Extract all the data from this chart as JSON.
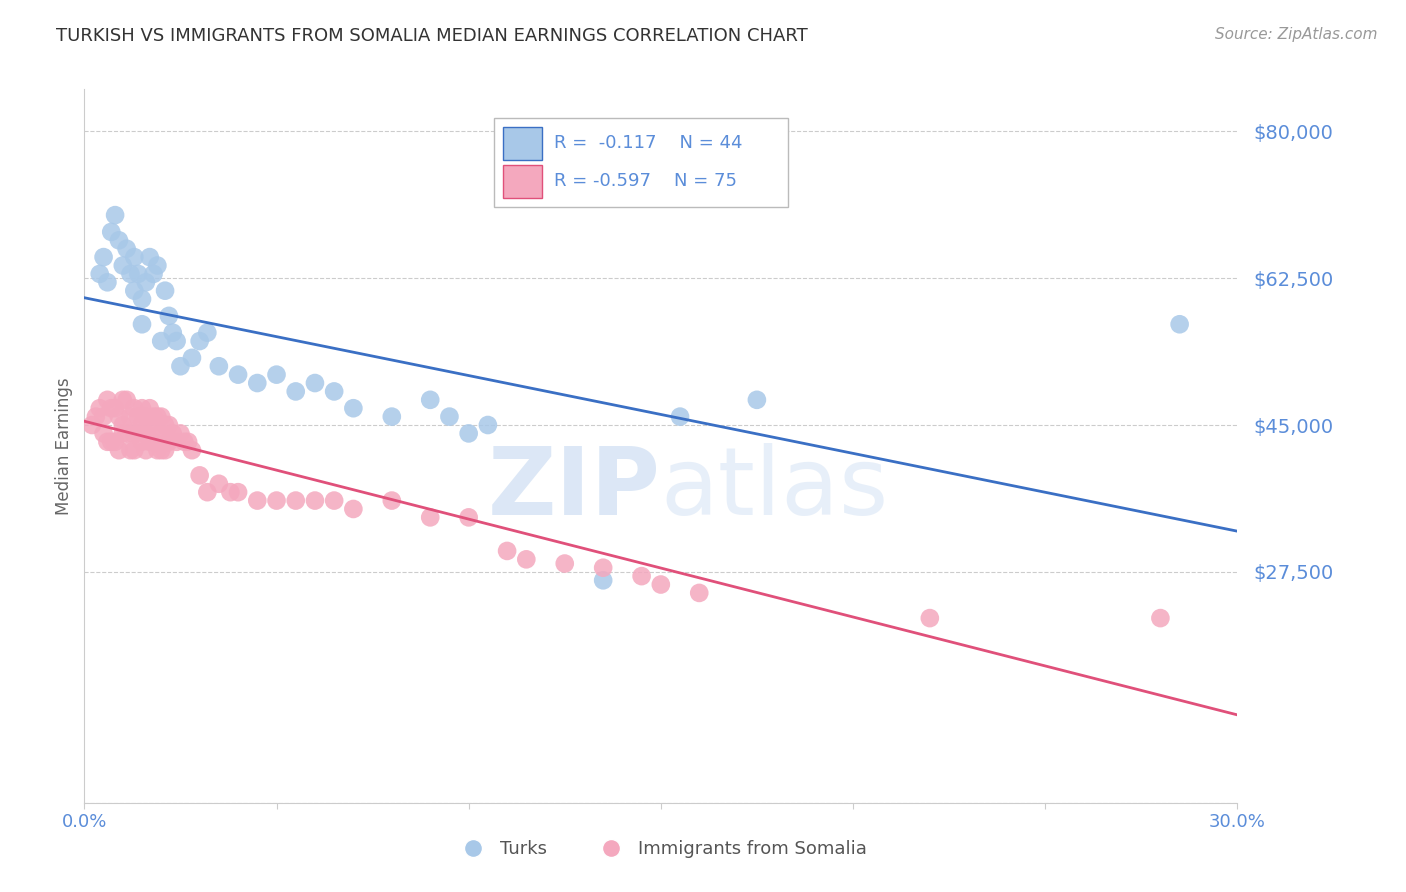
{
  "title": "TURKISH VS IMMIGRANTS FROM SOMALIA MEDIAN EARNINGS CORRELATION CHART",
  "source": "Source: ZipAtlas.com",
  "ylabel": "Median Earnings",
  "watermark": "ZIPatlas",
  "ylim": [
    0,
    85000
  ],
  "xlim": [
    0,
    0.3
  ],
  "yticks": [
    0,
    27500,
    45000,
    62500,
    80000
  ],
  "ytick_labels": [
    "",
    "$27,500",
    "$45,000",
    "$62,500",
    "$80,000"
  ],
  "xticks": [
    0.0,
    0.05,
    0.1,
    0.15,
    0.2,
    0.25,
    0.3
  ],
  "blue_label": "Turks",
  "pink_label": "Immigrants from Somalia",
  "legend_blue_r": "R =  -0.117",
  "legend_blue_n": "N = 44",
  "legend_pink_r": "R = -0.597",
  "legend_pink_n": "N = 75",
  "blue_color": "#a8c8e8",
  "pink_color": "#f4a8be",
  "blue_line_color": "#3a6fc4",
  "pink_line_color": "#e0507a",
  "axis_label_color": "#5b8dd9",
  "grid_color": "#cccccc",
  "title_color": "#333333",
  "background_color": "#ffffff",
  "blue_x": [
    0.004,
    0.005,
    0.006,
    0.007,
    0.008,
    0.009,
    0.01,
    0.011,
    0.012,
    0.013,
    0.013,
    0.014,
    0.015,
    0.015,
    0.016,
    0.017,
    0.018,
    0.019,
    0.02,
    0.021,
    0.022,
    0.023,
    0.024,
    0.025,
    0.028,
    0.03,
    0.032,
    0.035,
    0.04,
    0.045,
    0.05,
    0.055,
    0.06,
    0.065,
    0.07,
    0.08,
    0.09,
    0.095,
    0.1,
    0.105,
    0.135,
    0.155,
    0.175,
    0.285
  ],
  "blue_y": [
    63000,
    65000,
    62000,
    68000,
    70000,
    67000,
    64000,
    66000,
    63000,
    65000,
    61000,
    63000,
    57000,
    60000,
    62000,
    65000,
    63000,
    64000,
    55000,
    61000,
    58000,
    56000,
    55000,
    52000,
    53000,
    55000,
    56000,
    52000,
    51000,
    50000,
    51000,
    49000,
    50000,
    49000,
    47000,
    46000,
    48000,
    46000,
    44000,
    45000,
    26500,
    46000,
    48000,
    57000
  ],
  "pink_x": [
    0.002,
    0.003,
    0.004,
    0.005,
    0.005,
    0.006,
    0.006,
    0.007,
    0.007,
    0.008,
    0.008,
    0.009,
    0.009,
    0.01,
    0.01,
    0.01,
    0.011,
    0.011,
    0.012,
    0.012,
    0.013,
    0.013,
    0.013,
    0.014,
    0.014,
    0.015,
    0.015,
    0.015,
    0.016,
    0.016,
    0.016,
    0.017,
    0.017,
    0.017,
    0.018,
    0.018,
    0.019,
    0.019,
    0.019,
    0.02,
    0.02,
    0.02,
    0.021,
    0.021,
    0.022,
    0.022,
    0.023,
    0.024,
    0.025,
    0.026,
    0.027,
    0.028,
    0.03,
    0.032,
    0.035,
    0.038,
    0.04,
    0.045,
    0.05,
    0.055,
    0.06,
    0.065,
    0.07,
    0.08,
    0.09,
    0.1,
    0.11,
    0.115,
    0.125,
    0.135,
    0.145,
    0.15,
    0.16,
    0.22,
    0.28
  ],
  "pink_y": [
    45000,
    46000,
    47000,
    46000,
    44000,
    48000,
    43000,
    47000,
    43000,
    47000,
    43000,
    46000,
    42000,
    48000,
    45000,
    44000,
    48000,
    44000,
    46000,
    42000,
    47000,
    44000,
    42000,
    46000,
    44000,
    47000,
    45000,
    43000,
    46000,
    44000,
    42000,
    47000,
    45000,
    43000,
    46000,
    43000,
    46000,
    44000,
    42000,
    46000,
    44000,
    42000,
    45000,
    42000,
    45000,
    43000,
    44000,
    43000,
    44000,
    43000,
    43000,
    42000,
    39000,
    37000,
    38000,
    37000,
    37000,
    36000,
    36000,
    36000,
    36000,
    36000,
    35000,
    36000,
    34000,
    34000,
    30000,
    29000,
    28500,
    28000,
    27000,
    26000,
    25000,
    22000,
    22000
  ]
}
